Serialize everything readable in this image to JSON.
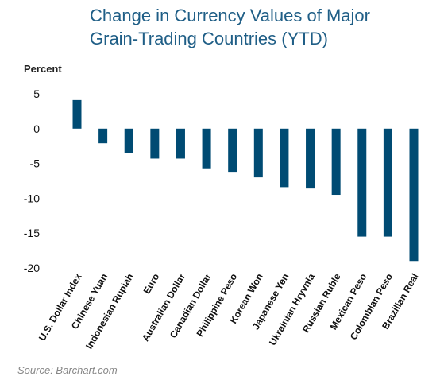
{
  "chart_data": {
    "type": "bar",
    "title_lines": [
      "Change in Currency Values of Major",
      "Grain-Trading Countries (YTD)"
    ],
    "ylabel": "Percent",
    "source": "Source: Barchart.com",
    "ylim": [
      -20,
      5
    ],
    "yticks": [
      5,
      0,
      -5,
      -10,
      -15,
      -20
    ],
    "grid": false,
    "bar_color": "#004b73",
    "categories": [
      "U.S. Dollar Index",
      "Chinese Yuan",
      "Indonesian Rupiah",
      "Euro",
      "Australian Dollar",
      "Canadian Dollar",
      "Philippine Peso",
      "Korean Won",
      "Japanese Yen",
      "Ukrainian Hryvnia",
      "Russian Ruble",
      "Mexican Peso",
      "Colombian Peso",
      "Brazilian Real"
    ],
    "values": [
      4.1,
      -2.1,
      -3.5,
      -4.3,
      -4.3,
      -5.7,
      -6.2,
      -7.0,
      -8.4,
      -8.6,
      -9.5,
      -15.5,
      -15.5,
      -19.0
    ]
  }
}
